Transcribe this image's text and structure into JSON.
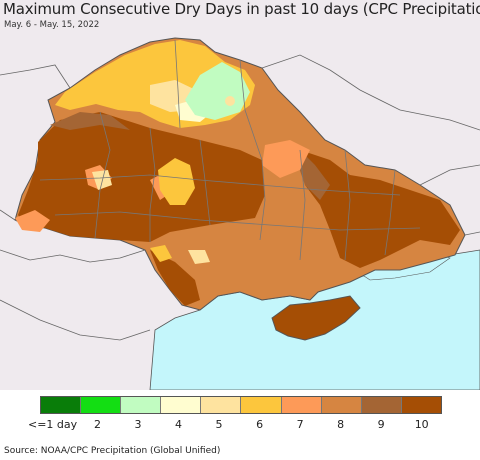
{
  "header": {
    "title": "Maximum Consecutive Dry Days in past 10 days (CPC Precipitation)",
    "date_range": "May. 6 - May. 15, 2022"
  },
  "map": {
    "region": "Ukraine",
    "colors": {
      "sea": "#c4f6fb",
      "outside": "#efeaee",
      "border": "#555555"
    },
    "dominant_class": "10",
    "zones": [
      {
        "name": "north-yellow",
        "class": "6"
      },
      {
        "name": "north-green",
        "class": "3"
      },
      {
        "name": "center-yellow",
        "class": "6"
      },
      {
        "name": "crimea",
        "class": "10"
      }
    ]
  },
  "legend": {
    "items": [
      {
        "label": "<=1 day",
        "color": "#097d09"
      },
      {
        "label": "2",
        "color": "#13de13"
      },
      {
        "label": "3",
        "color": "#c1fcc1"
      },
      {
        "label": "4",
        "color": "#fffdd0"
      },
      {
        "label": "5",
        "color": "#fee39f"
      },
      {
        "label": "6",
        "color": "#fcc63d"
      },
      {
        "label": "7",
        "color": "#fd9a58"
      },
      {
        "label": "8",
        "color": "#d68541"
      },
      {
        "label": "9",
        "color": "#a46534"
      },
      {
        "label": "10",
        "color": "#a54e05"
      }
    ]
  },
  "footer": {
    "source": "Source: NOAA/CPC Precipitation (Global Unified)"
  }
}
